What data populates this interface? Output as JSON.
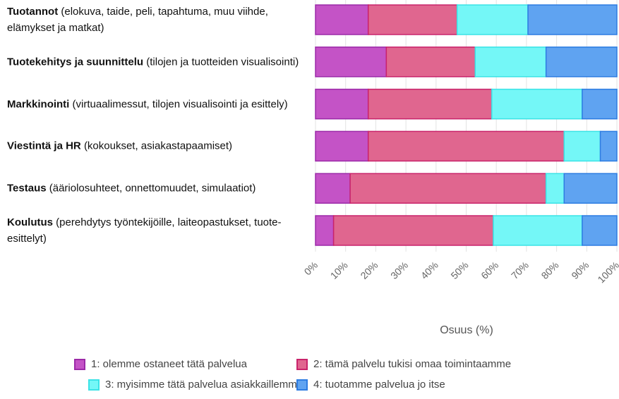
{
  "chart_data": {
    "type": "stacked_barh",
    "categories": [
      {
        "bold": "Tuotannot",
        "text": "(elokuva, taide, peli, tapahtuma, muu viihde, elämykset ja matkat)"
      },
      {
        "bold": "Tuotekehitys ja suunnittelu",
        "text": "(tilojen ja tuotteiden visualisointi)"
      },
      {
        "bold": "Markkinointi",
        "text": "(virtuaalimessut, tilojen visualisointi ja esittely)"
      },
      {
        "bold": "Viestintä ja HR",
        "text": "(kokoukset, asiakastapaamiset)"
      },
      {
        "bold": "Testaus",
        "text": "(ääriolosuhteet, onnettomuudet, simulaatiot)"
      },
      {
        "bold": "Koulutus",
        "text": "(perehdytys työntekijöille, laiteopastukset, tuote-esittelyt)"
      }
    ],
    "series": [
      {
        "name": "1: olemme ostaneet tätä palvelua",
        "color": "#c453c6",
        "border": "#9c2aa8",
        "values": [
          17.5,
          23.5,
          17.5,
          17.5,
          11.5,
          6
        ]
      },
      {
        "name": "2: tämä palvelu tukisi omaa toimintaamme",
        "color": "#e0668f",
        "border": "#c9236b",
        "values": [
          29.5,
          29.5,
          41,
          65,
          65,
          53
        ]
      },
      {
        "name": "3: myisimme tätä palvelua  asiakkaillemme",
        "color": "#74f7f7",
        "border": "#3be3e6",
        "values": [
          23.5,
          23.5,
          30,
          12,
          6,
          29.5
        ]
      },
      {
        "name": "4: tuotamme palvelua jo itse",
        "color": "#5fa3f1",
        "border": "#2d7ce2",
        "values": [
          29.5,
          23.5,
          11.5,
          5.5,
          17.5,
          11.5
        ]
      }
    ],
    "xlabel": "Osuus (%)",
    "xlim": [
      0,
      100
    ],
    "xticks": [
      {
        "value": 0,
        "label": "0%"
      },
      {
        "value": 10,
        "label": "10%"
      },
      {
        "value": 20,
        "label": "20%"
      },
      {
        "value": 30,
        "label": "30%"
      },
      {
        "value": 40,
        "label": "40%"
      },
      {
        "value": 50,
        "label": "50%"
      },
      {
        "value": 60,
        "label": "60%"
      },
      {
        "value": 70,
        "label": "70%"
      },
      {
        "value": 80,
        "label": "80%"
      },
      {
        "value": 90,
        "label": "90%"
      },
      {
        "value": 100,
        "label": "100%"
      }
    ],
    "grid": true
  }
}
